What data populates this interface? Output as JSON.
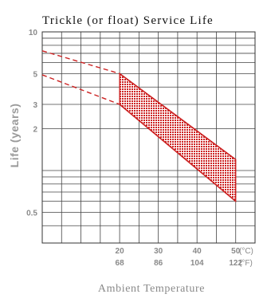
{
  "chart_data": {
    "type": "area",
    "title": "Trickle (or float) Service Life",
    "xlabel": "Ambient Temperature",
    "ylabel": "Life (years)",
    "y_scale": "log",
    "ylim": [
      0.3,
      10
    ],
    "xlim": [
      0,
      55
    ],
    "grid": true,
    "accent_color": "#cc2222",
    "y_ticks": [
      {
        "value": 10,
        "label": "10"
      },
      {
        "value": 5,
        "label": "5"
      },
      {
        "value": 3,
        "label": "3"
      },
      {
        "value": 2,
        "label": "2"
      },
      {
        "value": 0.5,
        "label": "0.5"
      }
    ],
    "x_ticks": [
      {
        "value": 20,
        "celsius": "20",
        "fahrenheit": "68"
      },
      {
        "value": 30,
        "celsius": "30",
        "fahrenheit": "86"
      },
      {
        "value": 40,
        "celsius": "40",
        "fahrenheit": "104"
      },
      {
        "value": 50,
        "celsius": "50",
        "fahrenheit": "122"
      }
    ],
    "units": {
      "celsius": "(°C)",
      "fahrenheit": "(°F)"
    },
    "series": [
      {
        "points": [
          [
            0,
            7.3
          ],
          [
            20,
            5.0
          ],
          [
            50,
            1.2
          ]
        ],
        "extrapolated_to": 20
      },
      {
        "points": [
          [
            0,
            4.9
          ],
          [
            20,
            3.0
          ],
          [
            50,
            0.6
          ]
        ],
        "extrapolated_to": 20
      }
    ]
  }
}
